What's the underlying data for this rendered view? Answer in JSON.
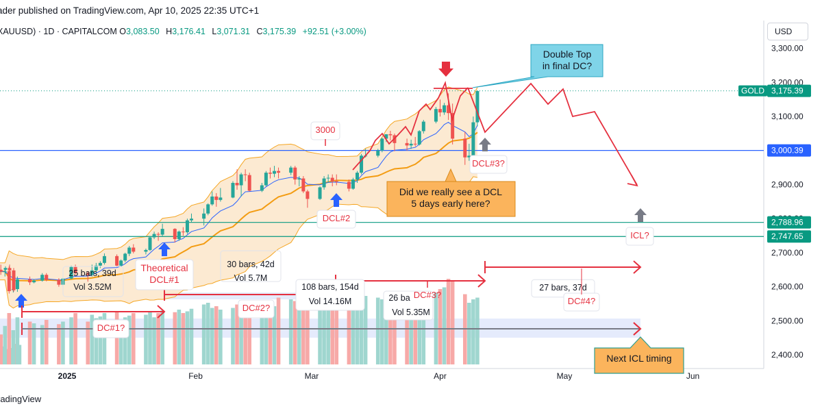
{
  "header": {
    "published": "ader published on TradingView.com, Apr 10, 2025 22:35 UTC+1",
    "symbol": "XAUUSD) · 1D · CAPITALCOM",
    "open_label": "O",
    "open": "3,083.50",
    "high_label": "H",
    "high": "3,176.41",
    "low_label": "L",
    "low": "3,071.31",
    "close_label": "C",
    "close": "3,175.39",
    "change": "+92.51 (+3.00%)"
  },
  "footer": "radingView",
  "currency_button": "USD",
  "colors": {
    "up": "#26a69a",
    "down": "#ef5350",
    "accent": "#2962ff",
    "annot": "#e5303f",
    "green_line": "#089981",
    "band": "#f5a623"
  },
  "chart_data": {
    "type": "candlestick",
    "ylim": [
      2370,
      3340
    ],
    "y_ticks": [
      {
        "v": 3300,
        "label": "3,300.00"
      },
      {
        "v": 3200,
        "label": "3,200.00"
      },
      {
        "v": 3100,
        "label": "3,100.00"
      },
      {
        "v": 2900,
        "label": "2,900.00"
      },
      {
        "v": 2800,
        "label": "2,800.00"
      },
      {
        "v": 2700,
        "label": "2,700.00"
      },
      {
        "v": 2600,
        "label": "2,600.00"
      },
      {
        "v": 2500,
        "label": "2,500.00"
      },
      {
        "v": 2400,
        "label": "2,400.00"
      }
    ],
    "x_ticks": [
      {
        "date": "2025-01-01",
        "label": "2025",
        "bold": true
      },
      {
        "date": "2025-02-01",
        "label": "Feb"
      },
      {
        "date": "2025-03-01",
        "label": "Mar"
      },
      {
        "date": "2025-04-01",
        "label": "Apr"
      },
      {
        "date": "2025-05-01",
        "label": "May"
      },
      {
        "date": "2025-06-01",
        "label": "Jun"
      }
    ],
    "price_tags": [
      {
        "v": 3175.39,
        "label": "3,175.39",
        "name": "GOLD",
        "color": "#089981"
      },
      {
        "v": 3000.39,
        "label": "3,000.39",
        "color": "#2962ff"
      },
      {
        "v": 2788.96,
        "label": "2,788.96",
        "color": "#089981"
      },
      {
        "v": 2747.65,
        "label": "2,747.65",
        "color": "#089981"
      }
    ],
    "horizontal_lines": [
      {
        "v": 3000.39,
        "color": "#2962ff"
      },
      {
        "v": 2788.96,
        "color": "#089981"
      },
      {
        "v": 2747.65,
        "color": "#089981"
      }
    ],
    "candles": [
      {
        "d": "2024-12-16",
        "o": 2650,
        "h": 2665,
        "l": 2635,
        "c": 2645
      },
      {
        "d": "2024-12-17",
        "o": 2645,
        "h": 2655,
        "l": 2630,
        "c": 2645
      },
      {
        "d": "2024-12-18",
        "o": 2646,
        "h": 2660,
        "l": 2580,
        "c": 2587
      },
      {
        "d": "2024-12-19",
        "o": 2590,
        "h": 2630,
        "l": 2583,
        "c": 2593
      },
      {
        "d": "2024-12-20",
        "o": 2593,
        "h": 2630,
        "l": 2585,
        "c": 2622
      },
      {
        "d": "2024-12-23",
        "o": 2622,
        "h": 2630,
        "l": 2605,
        "c": 2613
      },
      {
        "d": "2024-12-24",
        "o": 2613,
        "h": 2622,
        "l": 2610,
        "c": 2618
      },
      {
        "d": "2024-12-26",
        "o": 2618,
        "h": 2640,
        "l": 2615,
        "c": 2635
      },
      {
        "d": "2024-12-27",
        "o": 2635,
        "h": 2640,
        "l": 2616,
        "c": 2620
      },
      {
        "d": "2024-12-30",
        "o": 2620,
        "h": 2625,
        "l": 2600,
        "c": 2606
      },
      {
        "d": "2024-12-31",
        "o": 2606,
        "h": 2628,
        "l": 2600,
        "c": 2624
      },
      {
        "d": "2025-01-02",
        "o": 2624,
        "h": 2662,
        "l": 2622,
        "c": 2658
      },
      {
        "d": "2025-01-03",
        "o": 2658,
        "h": 2665,
        "l": 2635,
        "c": 2640
      },
      {
        "d": "2025-01-06",
        "o": 2640,
        "h": 2645,
        "l": 2615,
        "c": 2635
      },
      {
        "d": "2025-01-07",
        "o": 2635,
        "h": 2665,
        "l": 2630,
        "c": 2648
      },
      {
        "d": "2025-01-08",
        "o": 2648,
        "h": 2670,
        "l": 2640,
        "c": 2662
      },
      {
        "d": "2025-01-09",
        "o": 2662,
        "h": 2675,
        "l": 2655,
        "c": 2670
      },
      {
        "d": "2025-01-10",
        "o": 2670,
        "h": 2698,
        "l": 2665,
        "c": 2690
      },
      {
        "d": "2025-01-13",
        "o": 2690,
        "h": 2695,
        "l": 2658,
        "c": 2662
      },
      {
        "d": "2025-01-14",
        "o": 2662,
        "h": 2680,
        "l": 2660,
        "c": 2677
      },
      {
        "d": "2025-01-15",
        "o": 2677,
        "h": 2700,
        "l": 2672,
        "c": 2697
      },
      {
        "d": "2025-01-16",
        "o": 2697,
        "h": 2720,
        "l": 2690,
        "c": 2715
      },
      {
        "d": "2025-01-17",
        "o": 2715,
        "h": 2725,
        "l": 2698,
        "c": 2703
      },
      {
        "d": "2025-01-20",
        "o": 2703,
        "h": 2712,
        "l": 2695,
        "c": 2708
      },
      {
        "d": "2025-01-21",
        "o": 2708,
        "h": 2748,
        "l": 2705,
        "c": 2745
      },
      {
        "d": "2025-01-22",
        "o": 2745,
        "h": 2762,
        "l": 2740,
        "c": 2755
      },
      {
        "d": "2025-01-23",
        "o": 2755,
        "h": 2760,
        "l": 2735,
        "c": 2753
      },
      {
        "d": "2025-01-24",
        "o": 2753,
        "h": 2785,
        "l": 2748,
        "c": 2770
      },
      {
        "d": "2025-01-27",
        "o": 2770,
        "h": 2772,
        "l": 2730,
        "c": 2740
      },
      {
        "d": "2025-01-28",
        "o": 2740,
        "h": 2765,
        "l": 2735,
        "c": 2762
      },
      {
        "d": "2025-01-29",
        "o": 2762,
        "h": 2775,
        "l": 2750,
        "c": 2760
      },
      {
        "d": "2025-01-30",
        "o": 2760,
        "h": 2800,
        "l": 2755,
        "c": 2795
      },
      {
        "d": "2025-01-31",
        "o": 2795,
        "h": 2815,
        "l": 2790,
        "c": 2800
      },
      {
        "d": "2025-02-03",
        "o": 2800,
        "h": 2830,
        "l": 2780,
        "c": 2815
      },
      {
        "d": "2025-02-04",
        "o": 2815,
        "h": 2845,
        "l": 2810,
        "c": 2842
      },
      {
        "d": "2025-02-05",
        "o": 2842,
        "h": 2880,
        "l": 2838,
        "c": 2865
      },
      {
        "d": "2025-02-06",
        "o": 2865,
        "h": 2875,
        "l": 2835,
        "c": 2855
      },
      {
        "d": "2025-02-07",
        "o": 2855,
        "h": 2890,
        "l": 2850,
        "c": 2862
      },
      {
        "d": "2025-02-10",
        "o": 2862,
        "h": 2910,
        "l": 2860,
        "c": 2905
      },
      {
        "d": "2025-02-11",
        "o": 2905,
        "h": 2945,
        "l": 2885,
        "c": 2898
      },
      {
        "d": "2025-02-12",
        "o": 2898,
        "h": 2935,
        "l": 2865,
        "c": 2930
      },
      {
        "d": "2025-02-13",
        "o": 2930,
        "h": 2945,
        "l": 2910,
        "c": 2928
      },
      {
        "d": "2025-02-14",
        "o": 2928,
        "h": 2935,
        "l": 2880,
        "c": 2882
      },
      {
        "d": "2025-02-17",
        "o": 2882,
        "h": 2905,
        "l": 2878,
        "c": 2898
      },
      {
        "d": "2025-02-18",
        "o": 2898,
        "h": 2940,
        "l": 2895,
        "c": 2935
      },
      {
        "d": "2025-02-19",
        "o": 2935,
        "h": 2950,
        "l": 2918,
        "c": 2932
      },
      {
        "d": "2025-02-20",
        "o": 2932,
        "h": 2955,
        "l": 2922,
        "c": 2940
      },
      {
        "d": "2025-02-21",
        "o": 2940,
        "h": 2950,
        "l": 2918,
        "c": 2935
      },
      {
        "d": "2025-02-24",
        "o": 2935,
        "h": 2955,
        "l": 2928,
        "c": 2950
      },
      {
        "d": "2025-02-25",
        "o": 2950,
        "h": 2955,
        "l": 2900,
        "c": 2915
      },
      {
        "d": "2025-02-26",
        "o": 2915,
        "h": 2925,
        "l": 2895,
        "c": 2918
      },
      {
        "d": "2025-02-27",
        "o": 2918,
        "h": 2925,
        "l": 2875,
        "c": 2880
      },
      {
        "d": "2025-02-28",
        "o": 2880,
        "h": 2885,
        "l": 2832,
        "c": 2858
      },
      {
        "d": "2025-03-03",
        "o": 2858,
        "h": 2895,
        "l": 2855,
        "c": 2892
      },
      {
        "d": "2025-03-04",
        "o": 2892,
        "h": 2925,
        "l": 2885,
        "c": 2918
      },
      {
        "d": "2025-03-05",
        "o": 2918,
        "h": 2930,
        "l": 2905,
        "c": 2920
      },
      {
        "d": "2025-03-06",
        "o": 2920,
        "h": 2930,
        "l": 2895,
        "c": 2910
      },
      {
        "d": "2025-03-07",
        "o": 2910,
        "h": 2930,
        "l": 2898,
        "c": 2908
      },
      {
        "d": "2025-03-10",
        "o": 2908,
        "h": 2915,
        "l": 2880,
        "c": 2888
      },
      {
        "d": "2025-03-11",
        "o": 2888,
        "h": 2920,
        "l": 2885,
        "c": 2915
      },
      {
        "d": "2025-03-12",
        "o": 2915,
        "h": 2940,
        "l": 2905,
        "c": 2935
      },
      {
        "d": "2025-03-13",
        "o": 2935,
        "h": 2990,
        "l": 2930,
        "c": 2985
      },
      {
        "d": "2025-03-14",
        "o": 2985,
        "h": 3005,
        "l": 2980,
        "c": 2985
      },
      {
        "d": "2025-03-17",
        "o": 2985,
        "h": 3005,
        "l": 2980,
        "c": 3000
      },
      {
        "d": "2025-03-18",
        "o": 3000,
        "h": 3038,
        "l": 2995,
        "c": 3035
      },
      {
        "d": "2025-03-19",
        "o": 3035,
        "h": 3045,
        "l": 3025,
        "c": 3048
      },
      {
        "d": "2025-03-20",
        "o": 3048,
        "h": 3058,
        "l": 3030,
        "c": 3045
      },
      {
        "d": "2025-03-21",
        "o": 3045,
        "h": 3050,
        "l": 2998,
        "c": 3022
      },
      {
        "d": "2025-03-24",
        "o": 3022,
        "h": 3035,
        "l": 3000,
        "c": 3015
      },
      {
        "d": "2025-03-25",
        "o": 3015,
        "h": 3032,
        "l": 3005,
        "c": 3020
      },
      {
        "d": "2025-03-26",
        "o": 3020,
        "h": 3040,
        "l": 3012,
        "c": 3018
      },
      {
        "d": "2025-03-27",
        "o": 3018,
        "h": 3060,
        "l": 3015,
        "c": 3057
      },
      {
        "d": "2025-03-28",
        "o": 3057,
        "h": 3090,
        "l": 3050,
        "c": 3085
      },
      {
        "d": "2025-03-31",
        "o": 3085,
        "h": 3128,
        "l": 3080,
        "c": 3122
      },
      {
        "d": "2025-04-01",
        "o": 3122,
        "h": 3150,
        "l": 3100,
        "c": 3112
      },
      {
        "d": "2025-04-02",
        "o": 3112,
        "h": 3140,
        "l": 3105,
        "c": 3133
      },
      {
        "d": "2025-04-03",
        "o": 3133,
        "h": 3168,
        "l": 3090,
        "c": 3110
      },
      {
        "d": "2025-04-04",
        "o": 3110,
        "h": 3138,
        "l": 3018,
        "c": 3035
      },
      {
        "d": "2025-04-07",
        "o": 3035,
        "h": 3055,
        "l": 2958,
        "c": 2980
      },
      {
        "d": "2025-04-08",
        "o": 2980,
        "h": 3020,
        "l": 2970,
        "c": 2985
      },
      {
        "d": "2025-04-09",
        "o": 2985,
        "h": 3100,
        "l": 2975,
        "c": 3083
      },
      {
        "d": "2025-04-10",
        "o": 3083,
        "h": 3176,
        "l": 3071,
        "c": 3175
      }
    ],
    "volume": [
      0.35,
      0.45,
      0.6,
      0.4,
      0.55,
      0.5,
      0.48,
      0.46,
      0.52,
      0.47,
      0.5,
      0.55,
      0.6,
      0.5,
      0.58,
      0.54,
      0.56,
      0.6,
      0.62,
      0.52,
      0.55,
      0.57,
      0.6,
      0.58,
      0.62,
      0.55,
      0.6,
      0.63,
      0.61,
      0.64,
      0.6,
      0.62,
      0.65,
      0.7,
      0.72,
      0.66,
      0.68,
      0.64,
      0.66,
      0.7,
      0.75,
      0.68,
      0.72,
      0.62,
      0.74,
      0.72,
      0.68,
      0.78,
      0.76,
      0.74,
      0.7,
      0.78,
      0.82,
      0.8,
      0.74,
      0.7,
      0.76,
      0.72,
      0.78,
      0.82,
      0.8,
      0.84,
      0.8,
      0.78,
      0.76,
      0.74,
      0.72,
      0.74,
      0.78,
      0.8,
      0.82,
      0.86,
      0.78,
      0.84,
      0.88,
      0.9,
      1.0,
      0.98,
      0.82,
      0.72,
      0.76,
      0.78
    ],
    "annotations": [
      {
        "id": "double-top",
        "text": "Double Top\nin final DC?"
      },
      {
        "id": "level-3000",
        "text": "3000"
      },
      {
        "id": "dcl3",
        "text": "DCL#3?"
      },
      {
        "id": "dcl2",
        "text": "DCL#2"
      },
      {
        "id": "dcl-question",
        "text": "Did we really see a DCL\n5 days early here?"
      },
      {
        "id": "icl",
        "text": "ICL?"
      },
      {
        "id": "theoretical",
        "text": "Theoretical\nDCL#1"
      },
      {
        "id": "bars-25",
        "text": "25 bars, 39d"
      },
      {
        "id": "vol-352",
        "text": "Vol 3.52M"
      },
      {
        "id": "bars-30",
        "text": "30 bars, 42d"
      },
      {
        "id": "vol-57",
        "text": "Vol 5.7M"
      },
      {
        "id": "bars-108",
        "text": "108 bars, 154d"
      },
      {
        "id": "vol-1416",
        "text": "Vol 14.16M"
      },
      {
        "id": "bars-26",
        "text": "26 ba"
      },
      {
        "id": "vol-535",
        "text": "Vol 5.35M"
      },
      {
        "id": "bars-27",
        "text": "27 bars, 37d"
      },
      {
        "id": "dc1",
        "text": "DC#1?"
      },
      {
        "id": "dc2",
        "text": "DC#2?"
      },
      {
        "id": "dc3",
        "text": "DC#3?"
      },
      {
        "id": "dc4",
        "text": "DC#4?"
      },
      {
        "id": "next-icl",
        "text": "Next ICL timing"
      }
    ]
  }
}
